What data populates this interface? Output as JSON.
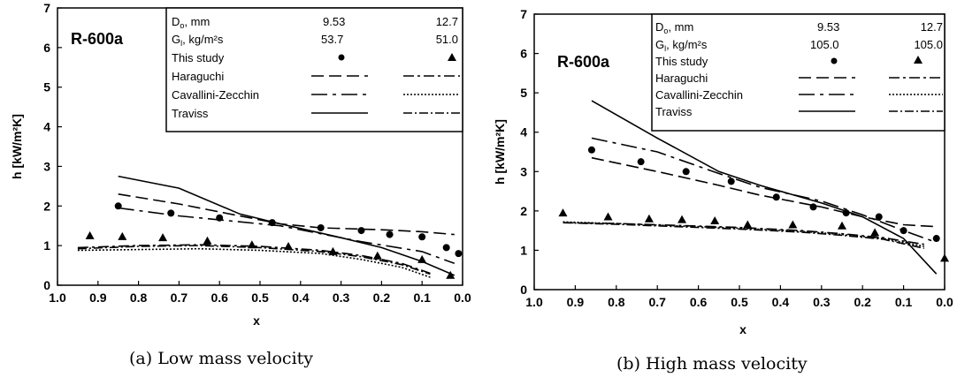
{
  "charts": [
    {
      "title": "R-600a",
      "caption": "(a) Low mass velocity",
      "xlabel": "x",
      "ylabel": "h [kW/m²K]",
      "legend": {
        "do_label": "D",
        "do_sub": "o",
        "do_unit": ", mm",
        "do_values": [
          "9.53",
          "12.7"
        ],
        "g_label": "G",
        "g_sub": "l",
        "g_unit": ",  kg/m²s",
        "g_values": [
          "53.7",
          "51.0"
        ],
        "entries": [
          "This study",
          "Haraguchi",
          "Cavallini-Zecchin",
          "Traviss"
        ]
      }
    },
    {
      "title": "R-600a",
      "caption": "(b) High mass velocity",
      "xlabel": "x",
      "ylabel": "h [kW/m²K]",
      "legend": {
        "do_label": "D",
        "do_sub": "o",
        "do_unit": ", mm",
        "do_values": [
          "9.53",
          "12.7"
        ],
        "g_label": "G",
        "g_sub": "l",
        "g_unit": ",  kg/m²s",
        "g_values": [
          "105.0",
          "105.0"
        ],
        "entries": [
          "This study",
          "Haraguchi",
          "Cavallini-Zecchin",
          "Traviss"
        ]
      }
    }
  ],
  "chart_data": [
    {
      "type": "scatter",
      "title": "R-600a",
      "xlabel": "x",
      "ylabel": "h [kW/m²K]",
      "xlim": [
        1.0,
        0.0
      ],
      "ylim": [
        0,
        7
      ],
      "x_ticks": [
        "1.0",
        "0.9",
        "0.8",
        "0.7",
        "0.6",
        "0.5",
        "0.4",
        "0.3",
        "0.2",
        "0.1",
        "0.0"
      ],
      "y_ticks": [
        "0",
        "1",
        "2",
        "3",
        "4",
        "5",
        "6",
        "7"
      ],
      "legend_position": "top-right",
      "series": [
        {
          "name": "This study 9.53",
          "marker": "circle",
          "x": [
            0.85,
            0.72,
            0.6,
            0.47,
            0.35,
            0.25,
            0.18,
            0.1,
            0.04,
            0.01
          ],
          "y": [
            2.0,
            1.82,
            1.7,
            1.58,
            1.45,
            1.38,
            1.28,
            1.22,
            0.95,
            0.8
          ]
        },
        {
          "name": "This study 12.7",
          "marker": "triangle",
          "x": [
            0.92,
            0.84,
            0.74,
            0.63,
            0.52,
            0.43,
            0.32,
            0.21,
            0.1,
            0.03
          ],
          "y": [
            1.25,
            1.23,
            1.2,
            1.12,
            1.02,
            0.98,
            0.85,
            0.74,
            0.65,
            0.25
          ]
        },
        {
          "name": "Haraguchi 9.53",
          "dash": "14,6",
          "x": [
            0.85,
            0.7,
            0.55,
            0.45,
            0.35,
            0.2,
            0.1,
            0.02
          ],
          "y": [
            2.3,
            2.05,
            1.75,
            1.55,
            1.45,
            1.4,
            1.35,
            1.28
          ]
        },
        {
          "name": "Cavallini-Zecchin 9.53",
          "dash": "18,6,4,6",
          "x": [
            0.85,
            0.7,
            0.55,
            0.45,
            0.35,
            0.25,
            0.1,
            0.02
          ],
          "y": [
            1.95,
            1.75,
            1.6,
            1.5,
            1.3,
            1.1,
            0.85,
            0.55
          ]
        },
        {
          "name": "Traviss 9.53",
          "dash": "",
          "x": [
            0.85,
            0.7,
            0.55,
            0.45,
            0.3,
            0.2,
            0.1,
            0.02
          ],
          "y": [
            2.75,
            2.45,
            1.8,
            1.55,
            1.2,
            0.95,
            0.6,
            0.25
          ]
        },
        {
          "name": "Haraguchi 12.7",
          "dash": "12,4,3,4",
          "x": [
            0.95,
            0.8,
            0.65,
            0.5,
            0.35,
            0.25,
            0.15,
            0.08
          ],
          "y": [
            0.95,
            1.0,
            1.02,
            0.98,
            0.88,
            0.75,
            0.55,
            0.3
          ]
        },
        {
          "name": "Cavallini-Zecchin 12.7",
          "dash": "2,2",
          "x": [
            0.95,
            0.8,
            0.65,
            0.5,
            0.35,
            0.25,
            0.15,
            0.08
          ],
          "y": [
            0.88,
            0.9,
            0.92,
            0.88,
            0.8,
            0.65,
            0.45,
            0.2
          ]
        },
        {
          "name": "Traviss 12.7",
          "dash": "10,3,2,3",
          "x": [
            0.95,
            0.8,
            0.65,
            0.5,
            0.35,
            0.25,
            0.15,
            0.08
          ],
          "y": [
            0.92,
            0.98,
            1.0,
            0.95,
            0.85,
            0.72,
            0.52,
            0.28
          ]
        }
      ]
    },
    {
      "type": "scatter",
      "title": "R-600a",
      "xlabel": "x",
      "ylabel": "h [kW/m²K]",
      "xlim": [
        1.0,
        0.0
      ],
      "ylim": [
        0,
        7
      ],
      "x_ticks": [
        "1.0",
        "0.9",
        "0.8",
        "0.7",
        "0.6",
        "0.5",
        "0.4",
        "0.3",
        "0.2",
        "0.1",
        "0.0"
      ],
      "y_ticks": [
        "0",
        "1",
        "2",
        "3",
        "4",
        "5",
        "6",
        "7"
      ],
      "legend_position": "top-right",
      "series": [
        {
          "name": "This study 9.53",
          "marker": "circle",
          "x": [
            0.86,
            0.74,
            0.63,
            0.52,
            0.41,
            0.32,
            0.24,
            0.16,
            0.1,
            0.02
          ],
          "y": [
            3.55,
            3.25,
            3.0,
            2.75,
            2.35,
            2.1,
            1.95,
            1.85,
            1.5,
            1.3
          ]
        },
        {
          "name": "This study 12.7",
          "marker": "triangle",
          "x": [
            0.93,
            0.82,
            0.72,
            0.64,
            0.56,
            0.48,
            0.37,
            0.25,
            0.17,
            0.0
          ],
          "y": [
            1.95,
            1.85,
            1.8,
            1.78,
            1.75,
            1.65,
            1.65,
            1.62,
            1.45,
            0.8
          ]
        },
        {
          "name": "Haraguchi 9.53",
          "dash": "14,6",
          "x": [
            0.86,
            0.7,
            0.55,
            0.45,
            0.3,
            0.2,
            0.1,
            0.02
          ],
          "y": [
            3.35,
            3.0,
            2.65,
            2.4,
            2.1,
            1.85,
            1.65,
            1.6
          ]
        },
        {
          "name": "Cavallini-Zecchin 9.53",
          "dash": "18,6,4,6",
          "x": [
            0.86,
            0.7,
            0.55,
            0.45,
            0.3,
            0.2,
            0.1,
            0.02
          ],
          "y": [
            3.85,
            3.5,
            2.95,
            2.6,
            2.25,
            1.9,
            1.5,
            1.2
          ]
        },
        {
          "name": "Traviss 9.53",
          "dash": "",
          "x": [
            0.86,
            0.7,
            0.55,
            0.45,
            0.3,
            0.2,
            0.1,
            0.02
          ],
          "y": [
            4.8,
            3.85,
            3.0,
            2.65,
            2.2,
            1.85,
            1.3,
            0.4
          ]
        },
        {
          "name": "Haraguchi 12.7",
          "dash": "12,4,3,4",
          "x": [
            0.93,
            0.8,
            0.65,
            0.5,
            0.35,
            0.25,
            0.15,
            0.05
          ],
          "y": [
            1.7,
            1.68,
            1.63,
            1.58,
            1.5,
            1.42,
            1.32,
            1.15
          ]
        },
        {
          "name": "Cavallini-Zecchin 12.7",
          "dash": "2,2",
          "x": [
            0.93,
            0.8,
            0.65,
            0.5,
            0.35,
            0.25,
            0.15,
            0.05
          ],
          "y": [
            1.72,
            1.68,
            1.62,
            1.56,
            1.48,
            1.4,
            1.3,
            1.1
          ]
        },
        {
          "name": "Traviss 12.7",
          "dash": "10,3,2,3",
          "x": [
            0.93,
            0.8,
            0.65,
            0.5,
            0.35,
            0.25,
            0.15,
            0.05
          ],
          "y": [
            1.7,
            1.66,
            1.6,
            1.54,
            1.46,
            1.38,
            1.28,
            1.05
          ]
        }
      ]
    }
  ]
}
